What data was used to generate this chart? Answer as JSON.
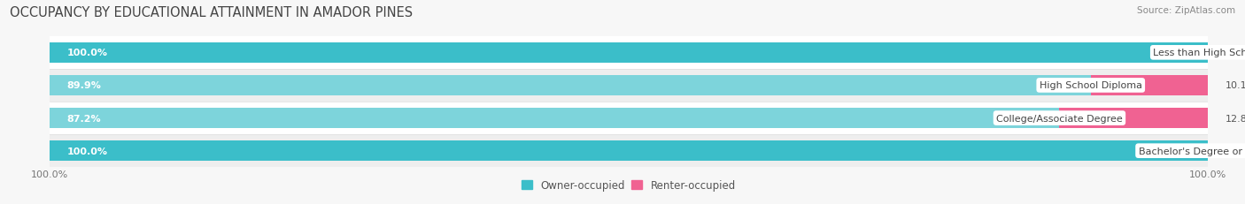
{
  "title": "OCCUPANCY BY EDUCATIONAL ATTAINMENT IN AMADOR PINES",
  "source": "Source: ZipAtlas.com",
  "categories": [
    "Less than High School",
    "High School Diploma",
    "College/Associate Degree",
    "Bachelor's Degree or higher"
  ],
  "owner_values": [
    100.0,
    89.9,
    87.2,
    100.0
  ],
  "renter_values": [
    0.0,
    10.1,
    12.8,
    0.0
  ],
  "owner_color_solid": "#3bbec9",
  "owner_color_light": "#7dd4db",
  "renter_color_solid": "#f06292",
  "renter_color_light": "#f8bbd0",
  "background_color": "#f7f7f7",
  "row_colors": [
    "#ffffff",
    "#eeeeee",
    "#ffffff",
    "#eeeeee"
  ],
  "title_fontsize": 10.5,
  "label_fontsize": 8.0,
  "value_fontsize": 8.0,
  "tick_fontsize": 8.0,
  "legend_fontsize": 8.5,
  "bar_height": 0.62
}
